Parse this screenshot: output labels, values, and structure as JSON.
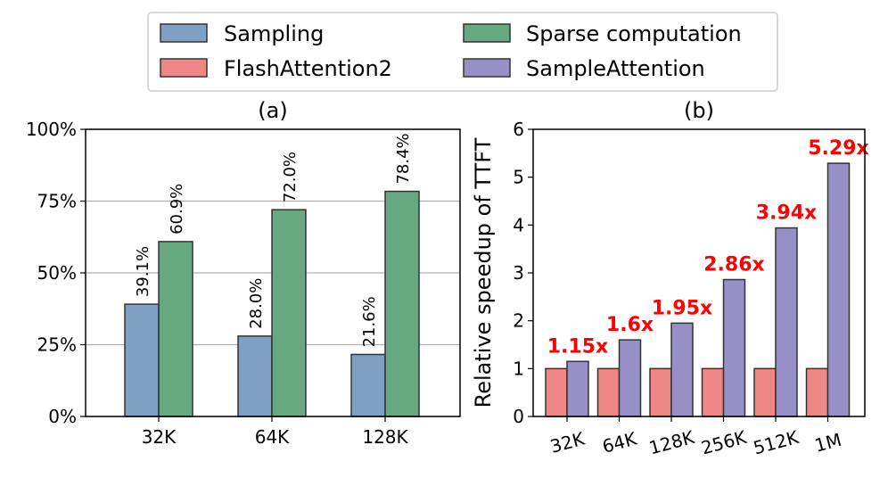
{
  "legend": [
    {
      "name": "Sampling",
      "color": "#7f9fc3"
    },
    {
      "name": "Sparse computation",
      "color": "#66a980"
    },
    {
      "name": "FlashAttention2",
      "color": "#ef8787"
    },
    {
      "name": "SampleAttention",
      "color": "#9690c7"
    }
  ],
  "chart_data": [
    {
      "type": "bar",
      "title": "(a)",
      "categories": [
        "32K",
        "64K",
        "128K"
      ],
      "series": [
        {
          "name": "Sampling",
          "values": [
            39.1,
            28.0,
            21.6
          ],
          "labels": [
            "39.1%",
            "28.0%",
            "21.6%"
          ]
        },
        {
          "name": "Sparse computation",
          "values": [
            60.9,
            72.0,
            78.4
          ],
          "labels": [
            "60.9%",
            "72.0%",
            "78.4%"
          ]
        }
      ],
      "ylim": [
        0,
        100
      ],
      "yticks": [
        0,
        25,
        50,
        75,
        100
      ],
      "ytick_labels": [
        "0%",
        "25%",
        "50%",
        "75%",
        "100%"
      ],
      "xlabel": "",
      "ylabel": "",
      "grid": "horizontal"
    },
    {
      "type": "bar",
      "title": "(b)",
      "categories": [
        "32K",
        "64K",
        "128K",
        "256K",
        "512K",
        "1M"
      ],
      "series": [
        {
          "name": "FlashAttention2",
          "values": [
            1,
            1,
            1,
            1,
            1,
            1
          ]
        },
        {
          "name": "SampleAttention",
          "values": [
            1.15,
            1.6,
            1.95,
            2.86,
            3.94,
            5.29
          ]
        }
      ],
      "speedup_labels": [
        "1.15x",
        "1.6x",
        "1.95x",
        "2.86x",
        "3.94x",
        "5.29x"
      ],
      "ylim": [
        0,
        6
      ],
      "yticks": [
        0,
        1,
        2,
        3,
        4,
        5,
        6
      ],
      "ytick_labels": [
        "0",
        "1",
        "2",
        "3",
        "4",
        "5",
        "6"
      ],
      "xlabel": "",
      "ylabel": "Relative speedup of TTFT"
    }
  ]
}
